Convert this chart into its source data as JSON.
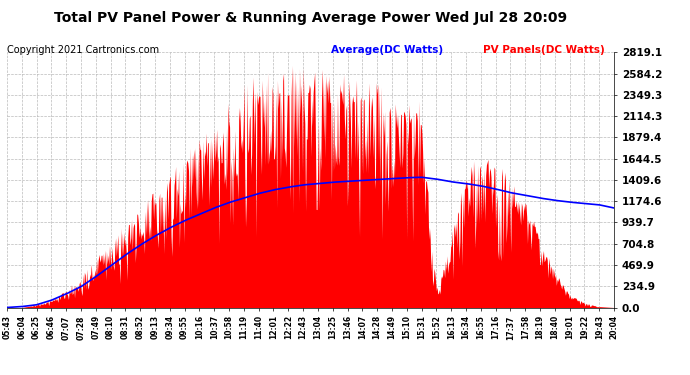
{
  "title": "Total PV Panel Power & Running Average Power Wed Jul 28 20:09",
  "copyright": "Copyright 2021 Cartronics.com",
  "legend_avg": "Average(DC Watts)",
  "legend_pv": "PV Panels(DC Watts)",
  "yticks": [
    0.0,
    234.9,
    469.9,
    704.8,
    939.7,
    1174.6,
    1409.6,
    1644.5,
    1879.4,
    2114.3,
    2349.3,
    2584.2,
    2819.1
  ],
  "ymax": 2819.1,
  "xtick_labels": [
    "05:43",
    "06:04",
    "06:25",
    "06:46",
    "07:07",
    "07:28",
    "07:49",
    "08:10",
    "08:31",
    "08:52",
    "09:13",
    "09:34",
    "09:55",
    "10:16",
    "10:37",
    "10:58",
    "11:19",
    "11:40",
    "12:01",
    "12:22",
    "12:43",
    "13:04",
    "13:25",
    "13:46",
    "14:07",
    "14:28",
    "14:49",
    "15:10",
    "15:31",
    "15:52",
    "16:13",
    "16:34",
    "16:55",
    "17:16",
    "17:37",
    "17:58",
    "18:19",
    "18:40",
    "19:01",
    "19:22",
    "19:43",
    "20:04"
  ],
  "pv_color": "#FF0000",
  "avg_color": "#0000FF",
  "bg_color": "#FFFFFF",
  "grid_color": "#BBBBBB",
  "title_color": "#000000",
  "copyright_color": "#000000",
  "legend_avg_color": "#0000FF",
  "legend_pv_color": "#FF0000",
  "pv_envelope": [
    0,
    0,
    30,
    80,
    200,
    350,
    550,
    750,
    950,
    1100,
    1300,
    1500,
    1700,
    1900,
    2100,
    2300,
    2500,
    2600,
    2650,
    2700,
    2680,
    2650,
    2600,
    2580,
    2550,
    2500,
    2450,
    2400,
    2300,
    200,
    800,
    1600,
    1700,
    1650,
    1500,
    1200,
    800,
    400,
    150,
    50,
    10,
    0
  ],
  "avg_points": [
    0,
    10,
    30,
    80,
    150,
    230,
    340,
    460,
    580,
    690,
    790,
    880,
    960,
    1030,
    1100,
    1160,
    1210,
    1260,
    1300,
    1330,
    1355,
    1370,
    1385,
    1395,
    1405,
    1415,
    1425,
    1435,
    1440,
    1420,
    1390,
    1370,
    1345,
    1310,
    1270,
    1240,
    1210,
    1185,
    1165,
    1150,
    1135,
    1100
  ]
}
